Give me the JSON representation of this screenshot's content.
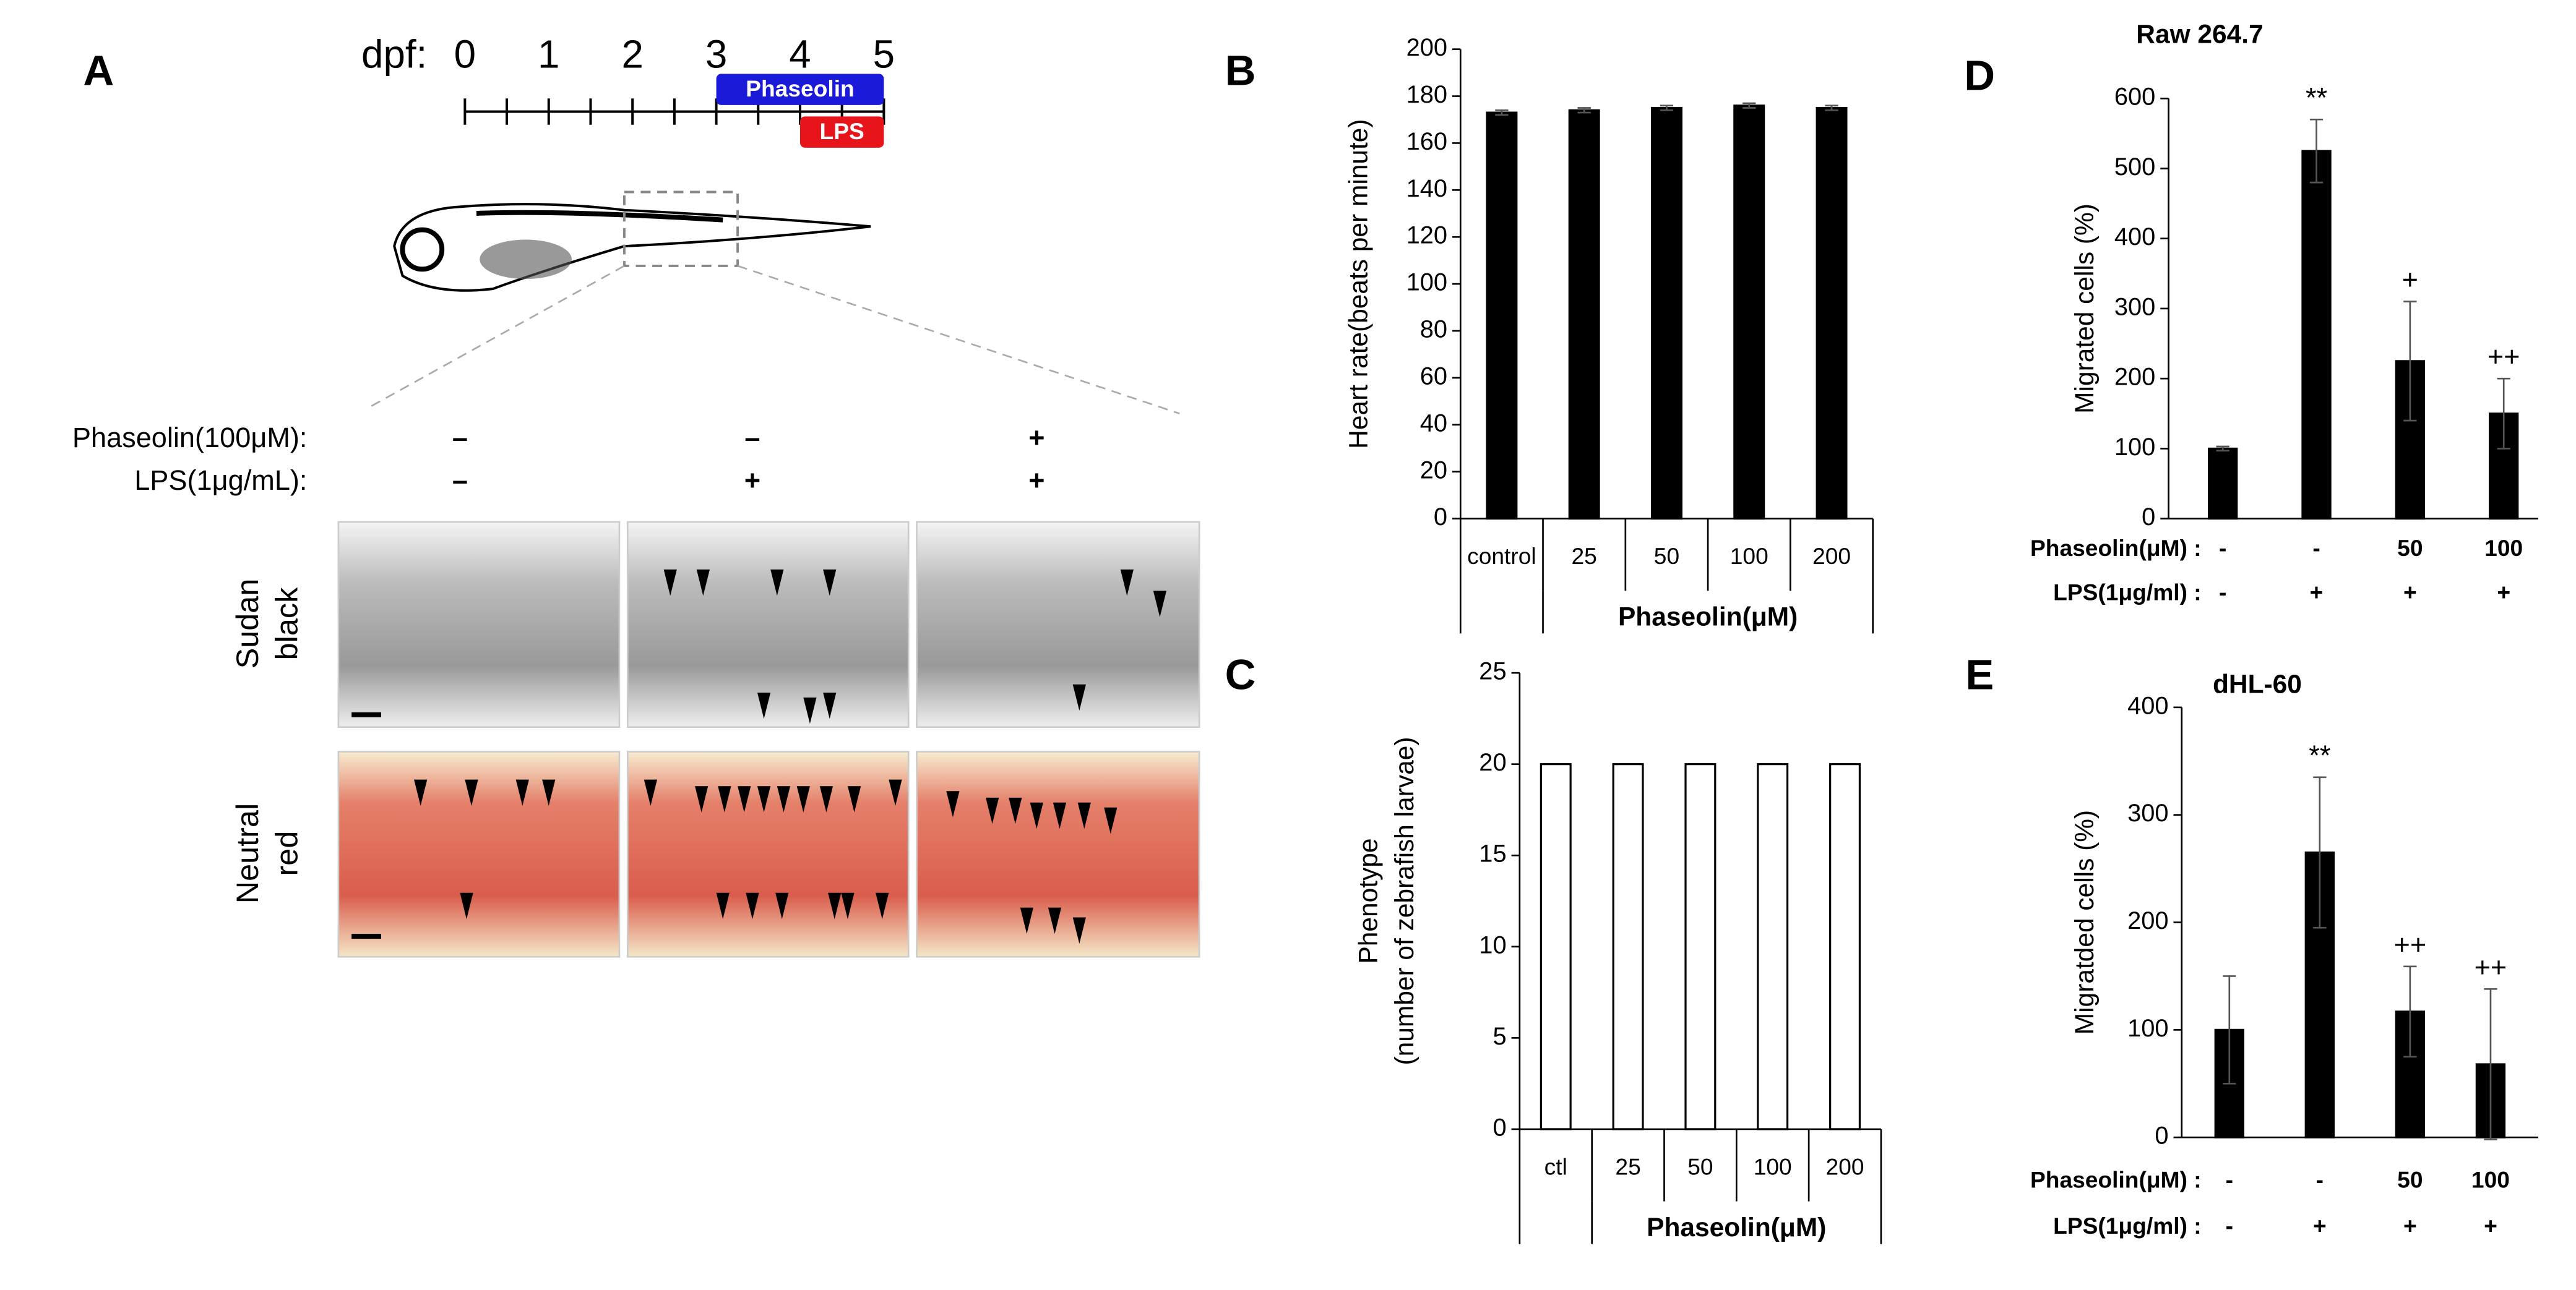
{
  "panel_a": {
    "letter": "A",
    "timeline": {
      "label": "dpf:",
      "days": [
        0,
        1,
        2,
        3,
        4,
        5
      ],
      "bars": [
        {
          "label": "Phaseolin",
          "from": 3,
          "to": 5,
          "color": "#1a1ad8"
        },
        {
          "label": "LPS",
          "from": 4,
          "to": 5,
          "color": "#e8141c"
        }
      ]
    },
    "conditions": [
      {
        "label": "Phaseolin(100μM):",
        "values": [
          "–",
          "–",
          "+"
        ]
      },
      {
        "label": "LPS(1μg/mL):",
        "values": [
          "–",
          "+",
          "+"
        ]
      }
    ],
    "stains": [
      {
        "lines": [
          "Sudan",
          "black"
        ]
      },
      {
        "lines": [
          "Neutral",
          "red"
        ]
      }
    ]
  },
  "chart_data": [
    {
      "letter": "B",
      "type": "bar",
      "ylabel": [
        "Heart rate(beats per minute)"
      ],
      "xlabel": "Phaseolin(μM)",
      "categories": [
        "control",
        "25",
        "50",
        "100",
        "200"
      ],
      "values": [
        173,
        174,
        175,
        176,
        175
      ],
      "errors": [
        1,
        1,
        1,
        1,
        1
      ],
      "color": "#000000",
      "ylim": [
        0,
        200
      ],
      "yticks": [
        0,
        20,
        40,
        60,
        80,
        100,
        120,
        140,
        160,
        180,
        200
      ]
    },
    {
      "letter": "C",
      "type": "bar",
      "ylabel": [
        "Phenotype",
        "(number of zebrafish larvae)"
      ],
      "xlabel": "Phaseolin(μM)",
      "categories": [
        "ctl",
        "25",
        "50",
        "100",
        "200"
      ],
      "values": [
        20,
        20,
        20,
        20,
        20
      ],
      "color": "#ffffff",
      "ylim": [
        0,
        25
      ],
      "yticks": [
        0,
        5,
        10,
        15,
        20,
        25
      ]
    },
    {
      "letter": "D",
      "type": "bar",
      "title": "Raw 264.7",
      "ylabel": [
        "Migrated cells (%)"
      ],
      "values": [
        100,
        525,
        225,
        150
      ],
      "errors": [
        3,
        45,
        85,
        50
      ],
      "value_annotations": [
        null,
        "**",
        "+",
        "++"
      ],
      "conditions": [
        {
          "label": "Phaseolin(μM) :",
          "values": [
            "-",
            "-",
            "50",
            "100"
          ]
        },
        {
          "label": "LPS(1μg/ml) :",
          "values": [
            "-",
            "+",
            "+",
            "+"
          ]
        }
      ],
      "color": "#000000",
      "ylim": [
        0,
        600
      ],
      "yticks": [
        0,
        100,
        200,
        300,
        400,
        500,
        600
      ]
    },
    {
      "letter": "E",
      "type": "bar",
      "title": "dHL-60",
      "ylabel": [
        "Migratded cells (%)"
      ],
      "values": [
        100,
        265,
        117,
        68
      ],
      "errors": [
        50,
        70,
        42,
        70
      ],
      "value_annotations": [
        null,
        "**",
        "++",
        "++"
      ],
      "conditions": [
        {
          "label": "Phaseolin(μM) :",
          "values": [
            "-",
            "-",
            "50",
            "100"
          ]
        },
        {
          "label": "LPS(1μg/ml) :",
          "values": [
            "-",
            "+",
            "+",
            "+"
          ]
        }
      ],
      "color": "#000000",
      "ylim": [
        0,
        400
      ],
      "yticks": [
        0,
        100,
        200,
        300,
        400
      ]
    }
  ]
}
